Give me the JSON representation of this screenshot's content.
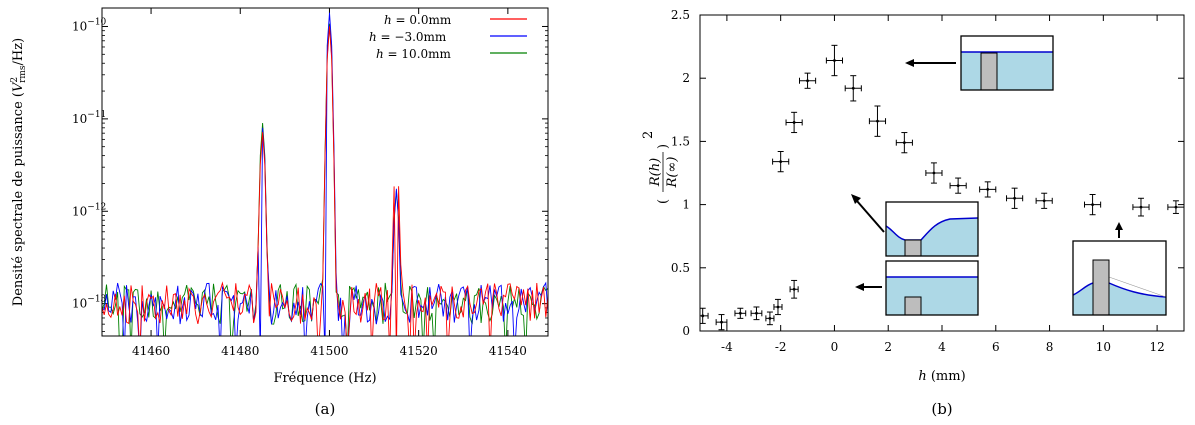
{
  "chart_data": [
    {
      "type": "line",
      "panel_label": "(a)",
      "xlabel": "Fréquence (Hz)",
      "ylabel": "Densité spectrale de puissance (V²rms/Hz)",
      "ylabel_main": "Densité spectrale de puissance (",
      "ylabel_var": "V",
      "ylabel_sup": "2",
      "ylabel_sub": "rms",
      "ylabel_end": "/Hz)",
      "xlim": [
        41449,
        41549
      ],
      "ylim_log10": [
        -13.35,
        -9.8
      ],
      "log_y": true,
      "xticks": [
        41460,
        41480,
        41500,
        41520,
        41540
      ],
      "yticks": [
        {
          "exp": -13,
          "label": "10",
          "sup": "−13"
        },
        {
          "exp": -12,
          "label": "10",
          "sup": "−12"
        },
        {
          "exp": -11,
          "label": "10",
          "sup": "−11"
        },
        {
          "exp": -10,
          "label": "10",
          "sup": "−10"
        }
      ],
      "legend_position": "top-right",
      "series": [
        {
          "name": "h = 0.0mm",
          "legend_var": "h",
          "legend_val": " = 0.0mm",
          "color": "#ff0000",
          "peaks": [
            {
              "x": 41485,
              "log10": -11.15
            },
            {
              "x": 41500,
              "log10": -10.0
            },
            {
              "x": 41515,
              "log10": -11.4
            }
          ]
        },
        {
          "name": "h = −3.0mm",
          "legend_var": "h",
          "legend_val": " = −3.0mm",
          "color": "#0000ff",
          "peaks": [
            {
              "x": 41485,
              "log10": -11.1
            },
            {
              "x": 41500,
              "log10": -9.85
            },
            {
              "x": 41515,
              "log10": -11.8
            }
          ]
        },
        {
          "name": "h = 10.0mm",
          "legend_var": "h",
          "legend_val": " = 10.0mm",
          "color": "#008000",
          "peaks": [
            {
              "x": 41485,
              "log10": -11.05
            },
            {
              "x": 41500,
              "log10": -9.97
            },
            {
              "x": 41515,
              "log10": -11.8
            }
          ]
        }
      ],
      "noise_floor_log10": -13.0
    },
    {
      "type": "scatter",
      "panel_label": "(b)",
      "xlabel_var": "h",
      "xlabel_unit": " (mm)",
      "ylabel": "(R(h)/R(∞))²",
      "ylabel_num": "R(h)",
      "ylabel_den": "R(∞)",
      "ylabel_exp": "2",
      "xlim": [
        -5,
        13
      ],
      "ylim": [
        0,
        2.5
      ],
      "xticks": [
        -4,
        -2,
        0,
        2,
        4,
        6,
        8,
        10,
        12
      ],
      "yticks": [
        0,
        0.5,
        1,
        1.5,
        2,
        2.5
      ],
      "points": [
        {
          "x": -4.9,
          "y": 0.12,
          "xerr": 0.2,
          "yerr": 0.06
        },
        {
          "x": -4.2,
          "y": 0.07,
          "xerr": 0.2,
          "yerr": 0.06
        },
        {
          "x": -3.5,
          "y": 0.14,
          "xerr": 0.2,
          "yerr": 0.04
        },
        {
          "x": -2.9,
          "y": 0.14,
          "xerr": 0.2,
          "yerr": 0.05
        },
        {
          "x": -2.4,
          "y": 0.1,
          "xerr": 0.15,
          "yerr": 0.05
        },
        {
          "x": -2.1,
          "y": 0.19,
          "xerr": 0.15,
          "yerr": 0.06
        },
        {
          "x": -1.5,
          "y": 0.33,
          "xerr": 0.15,
          "yerr": 0.07
        },
        {
          "x": -2.0,
          "y": 1.34,
          "xerr": 0.3,
          "yerr": 0.08
        },
        {
          "x": -1.5,
          "y": 1.65,
          "xerr": 0.3,
          "yerr": 0.08
        },
        {
          "x": -1.0,
          "y": 1.98,
          "xerr": 0.3,
          "yerr": 0.06
        },
        {
          "x": 0.0,
          "y": 2.14,
          "xerr": 0.3,
          "yerr": 0.12
        },
        {
          "x": 0.7,
          "y": 1.92,
          "xerr": 0.3,
          "yerr": 0.1
        },
        {
          "x": 1.6,
          "y": 1.66,
          "xerr": 0.3,
          "yerr": 0.12
        },
        {
          "x": 2.6,
          "y": 1.49,
          "xerr": 0.3,
          "yerr": 0.08
        },
        {
          "x": 3.7,
          "y": 1.25,
          "xerr": 0.3,
          "yerr": 0.08
        },
        {
          "x": 4.6,
          "y": 1.15,
          "xerr": 0.3,
          "yerr": 0.06
        },
        {
          "x": 5.7,
          "y": 1.12,
          "xerr": 0.3,
          "yerr": 0.06
        },
        {
          "x": 6.7,
          "y": 1.05,
          "xerr": 0.3,
          "yerr": 0.08
        },
        {
          "x": 7.8,
          "y": 1.03,
          "xerr": 0.3,
          "yerr": 0.06
        },
        {
          "x": 9.6,
          "y": 1.0,
          "xerr": 0.3,
          "yerr": 0.08
        },
        {
          "x": 11.4,
          "y": 0.98,
          "xerr": 0.3,
          "yerr": 0.07
        },
        {
          "x": 12.7,
          "y": 0.98,
          "xerr": 0.3,
          "yerr": 0.05
        }
      ],
      "inset_fill": "#add8e6",
      "inset_line": "#0000cd"
    }
  ]
}
